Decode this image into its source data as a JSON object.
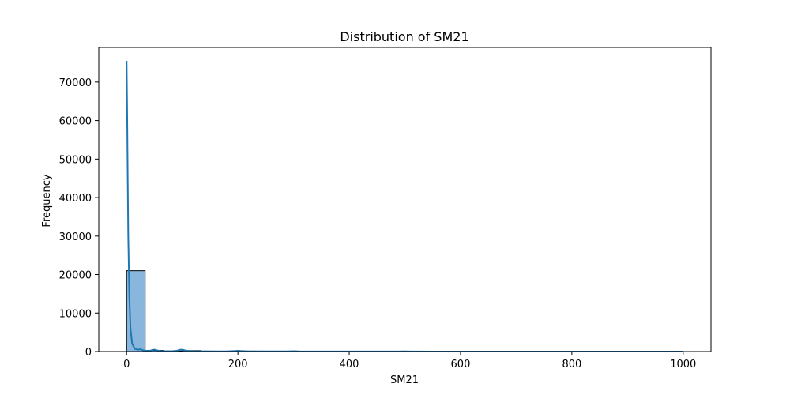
{
  "chart_data": {
    "type": "bar",
    "title": "Distribution of SM21",
    "xlabel": "SM21",
    "ylabel": "Frequency",
    "xlim": [
      -50,
      1050
    ],
    "ylim": [
      0,
      79000
    ],
    "xticks": [
      0,
      200,
      400,
      600,
      800,
      1000
    ],
    "yticks": [
      0,
      10000,
      20000,
      30000,
      40000,
      50000,
      60000,
      70000
    ],
    "grid": false,
    "bins": [
      {
        "x0": 0,
        "x1": 33.3,
        "count": 21000
      },
      {
        "x0": 33.3,
        "x1": 66.7,
        "count": 300
      },
      {
        "x0": 66.7,
        "x1": 100,
        "count": 150
      },
      {
        "x0": 100,
        "x1": 133.3,
        "count": 250
      },
      {
        "x0": 133.3,
        "x1": 166.7,
        "count": 80
      },
      {
        "x0": 166.7,
        "x1": 200,
        "count": 60
      },
      {
        "x0": 200,
        "x1": 233.3,
        "count": 120
      },
      {
        "x0": 233.3,
        "x1": 266.7,
        "count": 40
      },
      {
        "x0": 266.7,
        "x1": 300,
        "count": 40
      },
      {
        "x0": 300,
        "x1": 333.3,
        "count": 60
      },
      {
        "x0": 333.3,
        "x1": 366.7,
        "count": 20
      },
      {
        "x0": 366.7,
        "x1": 400,
        "count": 20
      },
      {
        "x0": 400,
        "x1": 433.3,
        "count": 20
      },
      {
        "x0": 433.3,
        "x1": 466.7,
        "count": 20
      },
      {
        "x0": 466.7,
        "x1": 500,
        "count": 20
      },
      {
        "x0": 500,
        "x1": 533.3,
        "count": 40
      },
      {
        "x0": 533.3,
        "x1": 566.7,
        "count": 10
      },
      {
        "x0": 566.7,
        "x1": 600,
        "count": 10
      },
      {
        "x0": 600,
        "x1": 633.3,
        "count": 10
      },
      {
        "x0": 633.3,
        "x1": 666.7,
        "count": 10
      },
      {
        "x0": 666.7,
        "x1": 700,
        "count": 10
      },
      {
        "x0": 700,
        "x1": 733.3,
        "count": 10
      },
      {
        "x0": 733.3,
        "x1": 766.7,
        "count": 10
      },
      {
        "x0": 766.7,
        "x1": 800,
        "count": 10
      },
      {
        "x0": 800,
        "x1": 833.3,
        "count": 10
      },
      {
        "x0": 833.3,
        "x1": 866.7,
        "count": 10
      },
      {
        "x0": 866.7,
        "x1": 900,
        "count": 10
      },
      {
        "x0": 900,
        "x1": 933.3,
        "count": 10
      },
      {
        "x0": 933.3,
        "x1": 966.7,
        "count": 10
      },
      {
        "x0": 966.7,
        "x1": 1000,
        "count": 20
      }
    ],
    "kde": {
      "x": [
        0,
        1,
        2,
        3,
        5,
        7,
        10,
        15,
        20,
        25,
        30,
        35,
        40,
        45,
        50,
        55,
        60,
        70,
        80,
        90,
        95,
        100,
        105,
        110,
        120,
        140,
        160,
        180,
        195,
        200,
        205,
        220,
        250,
        290,
        300,
        310,
        350,
        400,
        450,
        490,
        500,
        510,
        550,
        600,
        700,
        800,
        900,
        1000
      ],
      "y": [
        75500,
        62000,
        45000,
        30000,
        14000,
        6000,
        2000,
        700,
        500,
        600,
        300,
        200,
        150,
        350,
        500,
        300,
        150,
        100,
        80,
        200,
        450,
        500,
        300,
        150,
        100,
        80,
        60,
        60,
        150,
        200,
        150,
        60,
        40,
        40,
        100,
        40,
        20,
        20,
        20,
        30,
        60,
        30,
        10,
        10,
        10,
        10,
        10,
        10
      ]
    },
    "colors": {
      "bar_fill": "#89b6dc",
      "bar_edge": "#000000",
      "kde_line": "#1f77b4",
      "axes": "#000000"
    }
  }
}
